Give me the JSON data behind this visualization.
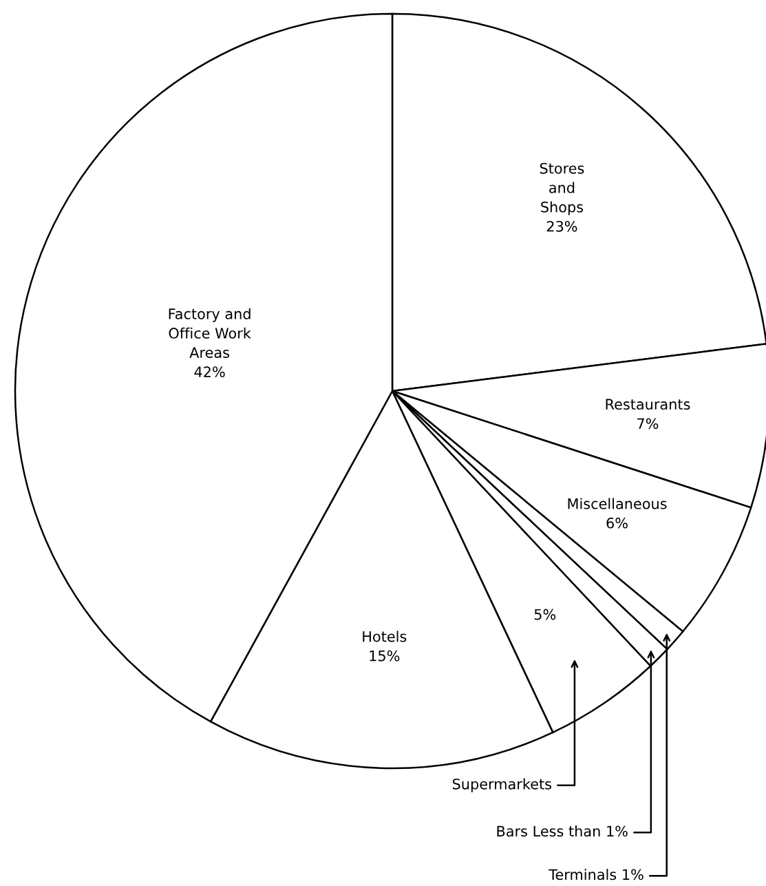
{
  "chart_data": {
    "type": "pie",
    "categories": [
      "Stores and Shops",
      "Restaurants",
      "Miscellaneous",
      "Terminals",
      "Bars",
      "Supermarkets",
      "Hotels",
      "Factory and Office Work Areas"
    ],
    "values": [
      23,
      7,
      6,
      1,
      1,
      5,
      15,
      42
    ],
    "value_labels": [
      "23%",
      "7%",
      "6%",
      "1%",
      "Less than 1%",
      "5%",
      "15%",
      "42%"
    ],
    "colors": [
      "#ffffff",
      "#ffffff",
      "#ffffff",
      "#ffffff",
      "#ffffff",
      "#ffffff",
      "#ffffff",
      "#ffffff"
    ]
  }
}
